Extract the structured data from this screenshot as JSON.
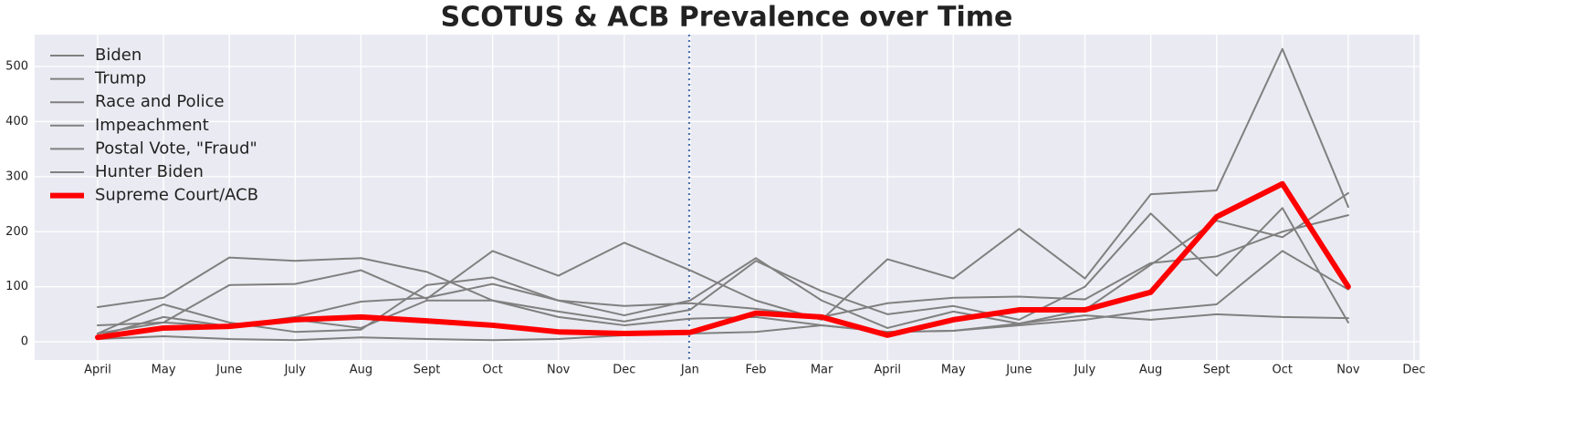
{
  "chart_data": {
    "type": "line",
    "title": "SCOTUS & ACB Prevalence over Time",
    "categories": [
      "April",
      "May",
      "June",
      "July",
      "Aug",
      "Sept",
      "Oct",
      "Nov",
      "Dec",
      "Jan",
      "Feb",
      "Mar",
      "April",
      "May",
      "June",
      "July",
      "Aug",
      "Sept",
      "Oct",
      "Nov",
      "Dec"
    ],
    "series": [
      {
        "name": "Biden",
        "color": "#808080",
        "values": [
          63,
          80,
          153,
          147,
          152,
          127,
          75,
          55,
          37,
          58,
          147,
          92,
          50,
          65,
          40,
          100,
          233,
          120,
          243,
          35,
          null
        ]
      },
      {
        "name": "Trump",
        "color": "#808080",
        "values": [
          30,
          35,
          103,
          105,
          130,
          78,
          165,
          120,
          180,
          130,
          75,
          40,
          150,
          115,
          205,
          115,
          268,
          275,
          532,
          245,
          null
        ]
      },
      {
        "name": "Race and Police",
        "color": "#808080",
        "values": [
          15,
          68,
          35,
          18,
          22,
          103,
          117,
          75,
          48,
          75,
          152,
          75,
          25,
          55,
          33,
          58,
          140,
          220,
          190,
          270,
          null
        ]
      },
      {
        "name": "Impeachment",
        "color": "#808080",
        "values": [
          10,
          45,
          28,
          45,
          73,
          80,
          105,
          75,
          65,
          70,
          60,
          45,
          70,
          80,
          82,
          77,
          143,
          155,
          200,
          230,
          null
        ]
      },
      {
        "name": "Postal Vote, \"Fraud\"",
        "color": "#808080",
        "values": [
          15,
          35,
          28,
          40,
          25,
          75,
          75,
          45,
          30,
          42,
          45,
          30,
          18,
          20,
          30,
          40,
          57,
          68,
          165,
          95,
          null
        ]
      },
      {
        "name": "Hunter Biden",
        "color": "#808080",
        "values": [
          5,
          10,
          5,
          3,
          8,
          5,
          3,
          5,
          12,
          15,
          18,
          30,
          18,
          20,
          33,
          48,
          40,
          50,
          45,
          43,
          null
        ]
      },
      {
        "name": "Supreme Court/ACB",
        "color": "#ff0000",
        "values": [
          8,
          25,
          28,
          40,
          45,
          38,
          30,
          18,
          15,
          17,
          52,
          45,
          12,
          40,
          58,
          58,
          90,
          227,
          287,
          100,
          null
        ]
      }
    ],
    "ylim": [
      -33,
      558
    ],
    "yticks": [
      0,
      100,
      200,
      300,
      400,
      500
    ],
    "grid": true,
    "legend": "upper left"
  }
}
